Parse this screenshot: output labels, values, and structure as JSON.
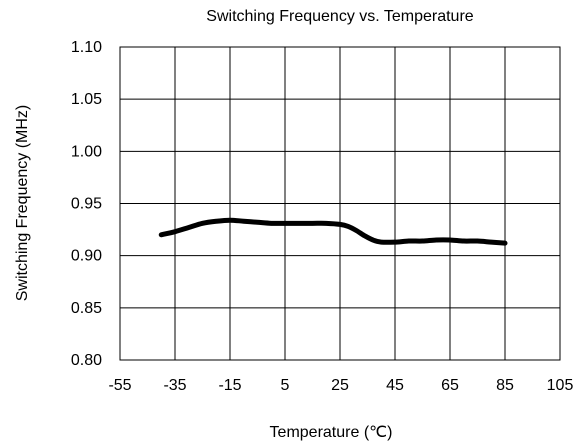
{
  "chart_data": {
    "type": "line",
    "title": "Switching Frequency vs. Temperature",
    "xlabel": "Temperature (℃)",
    "ylabel": "Switching Frequency (MHz)",
    "xlim": [
      -55,
      105
    ],
    "ylim": [
      0.8,
      1.1
    ],
    "x_ticks": [
      "-55",
      "-35",
      "-15",
      "5",
      "25",
      "45",
      "65",
      "85",
      "105"
    ],
    "y_ticks": [
      "0.80",
      "0.85",
      "0.90",
      "0.95",
      "1.00",
      "1.05",
      "1.10"
    ],
    "grid": true,
    "series": [
      {
        "x": [
          -40,
          -35,
          -30,
          -25,
          -20,
          -15,
          -10,
          -5,
          0,
          5,
          10,
          15,
          20,
          25,
          28,
          31,
          34,
          37,
          40,
          45,
          50,
          55,
          60,
          65,
          70,
          75,
          80,
          85
        ],
        "y": [
          0.92,
          0.923,
          0.927,
          0.931,
          0.933,
          0.934,
          0.933,
          0.932,
          0.931,
          0.931,
          0.931,
          0.931,
          0.931,
          0.93,
          0.928,
          0.924,
          0.919,
          0.915,
          0.913,
          0.913,
          0.914,
          0.914,
          0.915,
          0.915,
          0.914,
          0.914,
          0.913,
          0.912
        ],
        "color": "#000000"
      }
    ]
  }
}
